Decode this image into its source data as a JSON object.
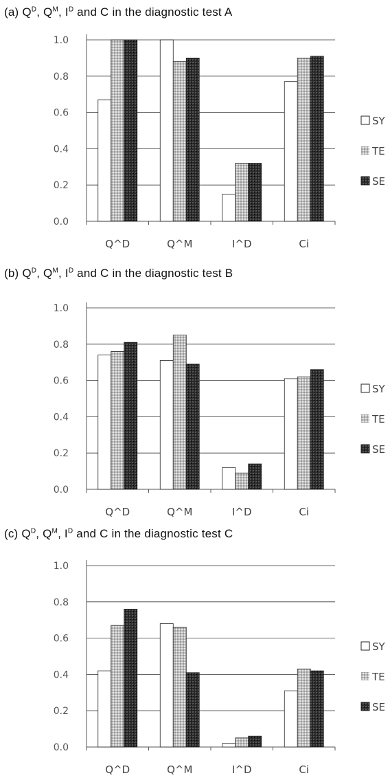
{
  "chart_data": [
    {
      "type": "bar",
      "title_parts": {
        "prefix": "(a)",
        "q": "Q",
        "d": "D",
        "m": "M",
        "i": "I",
        "and": "and C in the diagnostic test A"
      },
      "categories": [
        "Q^D",
        "Q^M",
        "I^D",
        "Ci"
      ],
      "series": [
        {
          "name": "SY",
          "values": [
            0.67,
            1.0,
            0.15,
            0.77
          ]
        },
        {
          "name": "TE",
          "values": [
            1.0,
            0.88,
            0.32,
            0.9
          ]
        },
        {
          "name": "SE",
          "values": [
            1.0,
            0.9,
            0.32,
            0.91
          ]
        }
      ],
      "ylim": [
        0,
        1.0
      ],
      "yticks": [
        "0.0",
        "0.2",
        "0.4",
        "0.6",
        "0.8",
        "1.0"
      ],
      "grid": true,
      "legend": "right"
    },
    {
      "type": "bar",
      "title_parts": {
        "prefix": "(b)",
        "q": "Q",
        "d": "D",
        "m": "M",
        "i": "I",
        "and": "and C in the diagnostic test B"
      },
      "categories": [
        "Q^D",
        "Q^M",
        "I^D",
        "Ci"
      ],
      "series": [
        {
          "name": "SY",
          "values": [
            0.74,
            0.71,
            0.12,
            0.61
          ]
        },
        {
          "name": "TE",
          "values": [
            0.76,
            0.85,
            0.09,
            0.62
          ]
        },
        {
          "name": "SE",
          "values": [
            0.81,
            0.69,
            0.14,
            0.66
          ]
        }
      ],
      "ylim": [
        0,
        1.0
      ],
      "yticks": [
        "0.0",
        "0.2",
        "0.4",
        "0.6",
        "0.8",
        "1.0"
      ],
      "grid": true,
      "legend": "right"
    },
    {
      "type": "bar",
      "title_parts": {
        "prefix": "(c)",
        "q": "Q",
        "d": "D",
        "m": "M",
        "i": "I",
        "and": "and C in the diagnostic test C"
      },
      "categories": [
        "Q^D",
        "Q^M",
        "I^D",
        "Ci"
      ],
      "series": [
        {
          "name": "SY",
          "values": [
            0.42,
            0.68,
            0.02,
            0.31
          ]
        },
        {
          "name": "TE",
          "values": [
            0.67,
            0.66,
            0.05,
            0.43
          ]
        },
        {
          "name": "SE",
          "values": [
            0.76,
            0.41,
            0.06,
            0.42
          ]
        }
      ],
      "ylim": [
        0,
        1.0
      ],
      "yticks": [
        "0.0",
        "0.2",
        "0.4",
        "0.6",
        "0.8",
        "1.0"
      ],
      "grid": true,
      "legend": "right"
    }
  ],
  "colors": {
    "SY": "#ffffff",
    "TE": "#bdbdbd",
    "SE": "#2b2b2b",
    "grid": "#333333",
    "axis": "#555555"
  }
}
